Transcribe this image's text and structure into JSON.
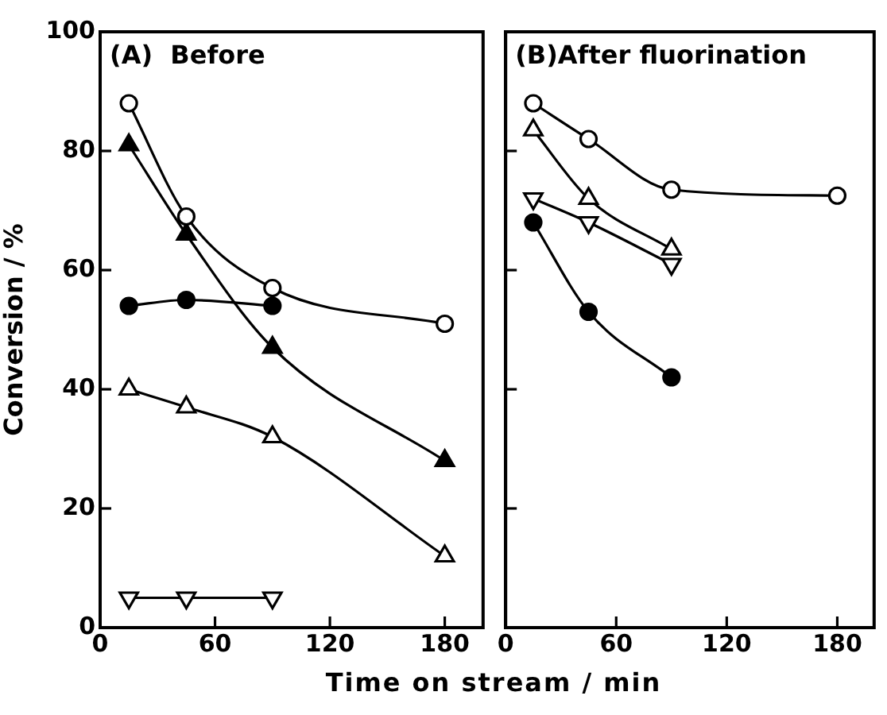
{
  "chart_data": [
    {
      "type": "line",
      "title": "(A)  Before",
      "xlabel": "Time on stream / min",
      "ylabel": "Conversion / %",
      "xlim": [
        0,
        200
      ],
      "xticks": [
        0,
        60,
        120,
        180
      ],
      "ylim": [
        0,
        100
      ],
      "yticks": [
        0,
        20,
        40,
        60,
        80,
        100
      ],
      "series": [
        {
          "color": "#ffffff",
          "marker": "circle",
          "x": [
            15,
            45,
            90,
            180
          ],
          "values": [
            88,
            69,
            57,
            51
          ]
        },
        {
          "color": "#000000",
          "marker": "triangle",
          "x": [
            15,
            45,
            90,
            180
          ],
          "values": [
            81,
            66,
            47,
            28
          ]
        },
        {
          "color": "#000000",
          "marker": "circle",
          "x": [
            15,
            45,
            90
          ],
          "values": [
            54,
            55,
            54
          ]
        },
        {
          "color": "#ffffff",
          "marker": "triangle",
          "x": [
            15,
            45,
            90,
            180
          ],
          "values": [
            40,
            37,
            32,
            12
          ]
        },
        {
          "color": "#ffffff",
          "marker": "triangle_down",
          "x": [
            15,
            45,
            90
          ],
          "values": [
            5,
            5,
            5
          ]
        }
      ]
    },
    {
      "type": "line",
      "title": "(B)After fluorination",
      "xlim": [
        0,
        200
      ],
      "xticks": [
        0,
        60,
        120,
        180
      ],
      "ylim": [
        0,
        100
      ],
      "yticks": [
        0,
        20,
        40,
        60,
        80,
        100
      ],
      "tick_labels": "x",
      "series": [
        {
          "color": "#ffffff",
          "marker": "circle",
          "x": [
            15,
            45,
            90,
            180
          ],
          "values": [
            88,
            82,
            73.5,
            72.5
          ]
        },
        {
          "color": "#ffffff",
          "marker": "triangle",
          "x": [
            15,
            45,
            90
          ],
          "values": [
            83.5,
            72,
            63.5
          ]
        },
        {
          "color": "#ffffff",
          "marker": "triangle_down",
          "x": [
            15,
            45,
            90
          ],
          "values": [
            72,
            68,
            61
          ]
        },
        {
          "color": "#000000",
          "marker": "circle",
          "x": [
            15,
            45,
            90
          ],
          "values": [
            68,
            53,
            42
          ]
        }
      ]
    }
  ]
}
